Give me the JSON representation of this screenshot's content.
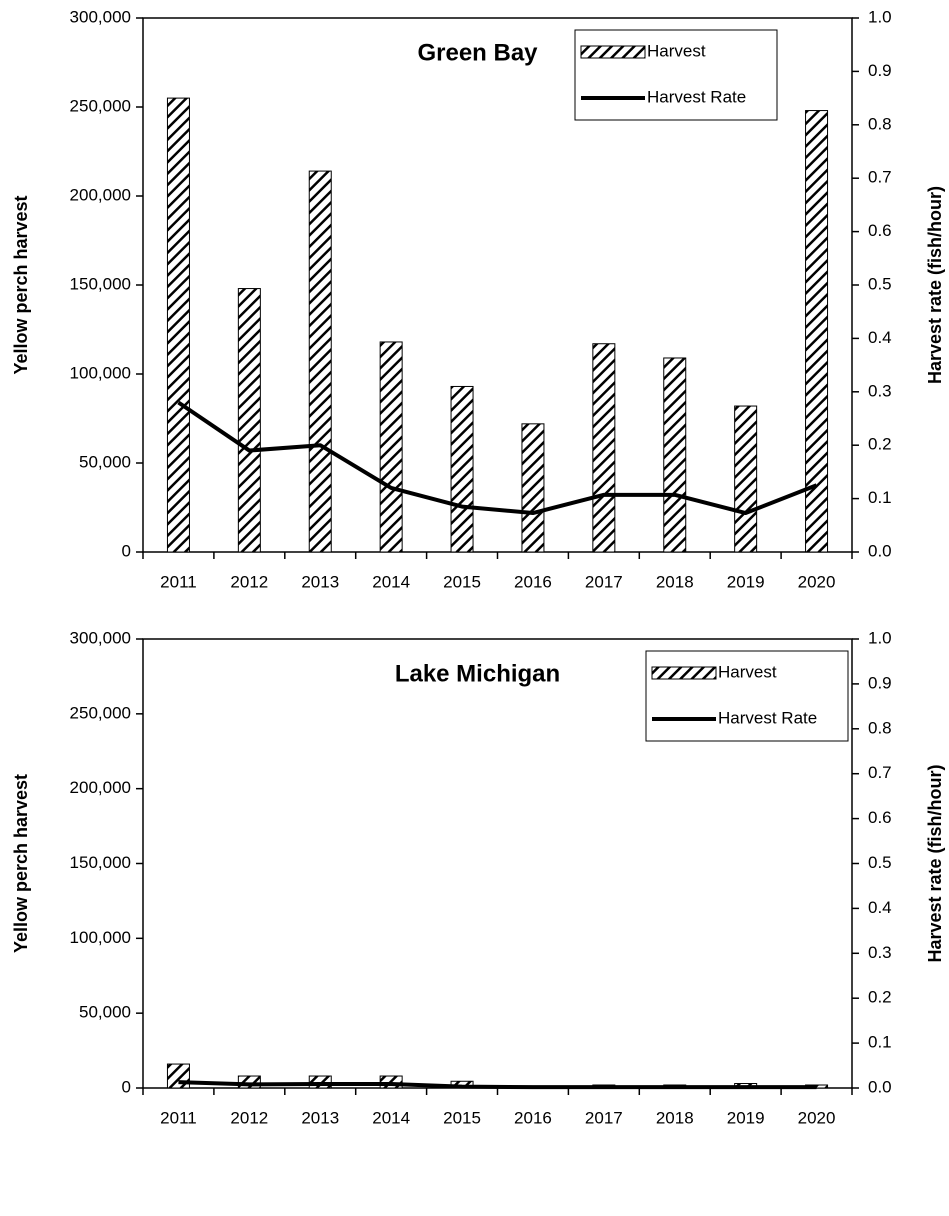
{
  "chart_data": [
    {
      "type": "bar",
      "title": "Green Bay",
      "y_label": "Yellow perch harvest",
      "y2_label": "Harvest rate (fish/hour)",
      "categories": [
        "2011",
        "2012",
        "2013",
        "2014",
        "2015",
        "2016",
        "2017",
        "2018",
        "2019",
        "2020"
      ],
      "series": [
        {
          "name": "Harvest",
          "type": "bar",
          "color": "#000000",
          "values": [
            255000,
            148000,
            214000,
            118000,
            93000,
            72000,
            117000,
            109000,
            82000,
            248000
          ]
        },
        {
          "name": "Harvest Rate",
          "type": "line",
          "axis": "y2",
          "color": "#000000",
          "values": [
            0.28,
            0.19,
            0.2,
            0.12,
            0.085,
            0.073,
            0.107,
            0.107,
            0.073,
            0.125
          ]
        }
      ],
      "ylim": [
        0,
        300000
      ],
      "yticks": [
        0,
        {
          "value": 50000,
          "label": "50,000"
        },
        {
          "value": 100000,
          "label": "100,000"
        },
        {
          "value": 150000,
          "label": "150,000"
        },
        {
          "value": 200000,
          "label": "200,000"
        },
        {
          "value": 250000,
          "label": "250,000"
        },
        {
          "value": 300000,
          "label": "300,000"
        }
      ],
      "y2lim": [
        0,
        1
      ],
      "y2ticks": [
        {
          "value": 0,
          "label": "0.0"
        },
        0.1,
        0.2,
        0.3,
        0.4,
        0.5,
        0.6,
        0.7,
        0.8,
        0.9,
        {
          "value": 1,
          "label": "1.0"
        }
      ],
      "grid": false,
      "legend": "upper right"
    },
    {
      "type": "bar",
      "title": "Lake Michigan",
      "y_label": "Yellow perch harvest",
      "y2_label": "Harvest rate (fish/hour)",
      "categories": [
        "2011",
        "2012",
        "2013",
        "2014",
        "2015",
        "2016",
        "2017",
        "2018",
        "2019",
        "2020"
      ],
      "series": [
        {
          "name": "Harvest",
          "type": "bar",
          "color": "#000000",
          "values": [
            16000,
            8000,
            8000,
            8000,
            4500,
            1000,
            2000,
            2000,
            3000,
            2000
          ]
        },
        {
          "name": "Harvest Rate",
          "type": "line",
          "axis": "y2",
          "color": "#000000",
          "values": [
            0.013,
            0.008,
            0.009,
            0.009,
            0.003,
            0.002,
            0.002,
            0.002,
            0.002,
            0.002
          ]
        }
      ],
      "ylim": [
        0,
        300000
      ],
      "yticks": [
        0,
        {
          "value": 50000,
          "label": "50,000"
        },
        {
          "value": 100000,
          "label": "100,000"
        },
        {
          "value": 150000,
          "label": "150,000"
        },
        {
          "value": 200000,
          "label": "200,000"
        },
        {
          "value": 250000,
          "label": "250,000"
        },
        {
          "value": 300000,
          "label": "300,000"
        }
      ],
      "y2lim": [
        0,
        1
      ],
      "y2ticks": [
        {
          "value": 0,
          "label": "0.0"
        },
        0.1,
        0.2,
        0.3,
        0.4,
        0.5,
        0.6,
        0.7,
        0.8,
        0.9,
        {
          "value": 1,
          "label": "1.0"
        }
      ],
      "grid": false,
      "legend": "upper right"
    }
  ]
}
